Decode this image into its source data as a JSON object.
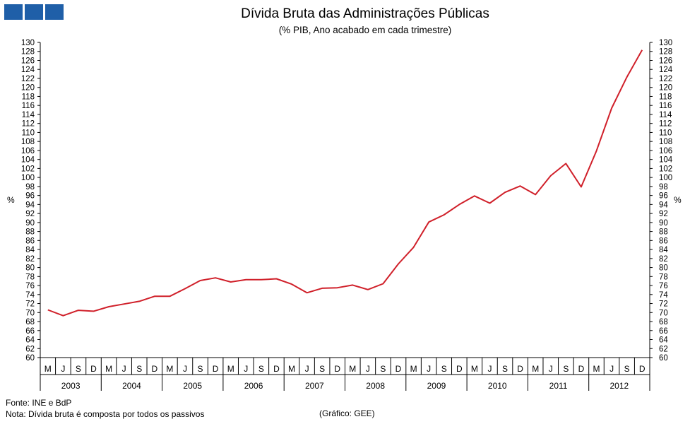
{
  "header": {
    "title": "Dívida Bruta das Administrações Públicas",
    "subtitle": "(% PIB, Ano acabado em cada trimestre)"
  },
  "logo": {
    "colors": [
      "#1f5fa8",
      "#1f5fa8",
      "#1f5fa8"
    ]
  },
  "footer": {
    "source": "Fonte: INE e BdP",
    "note": "Nota: Dívida bruta é composta por todos os passivos",
    "credit": "(Gráfico: GEE)"
  },
  "chart_data": {
    "type": "line",
    "title": "Dívida Bruta das Administrações Públicas",
    "subtitle": "(% PIB, Ano acabado em cada trimestre)",
    "ylabel_left": "%",
    "ylabel_right": "%",
    "ylim": [
      60,
      130
    ],
    "ytick_step": 2,
    "grid": false,
    "legend": "none",
    "quarter_labels": [
      "M",
      "J",
      "S",
      "D"
    ],
    "years": [
      "2003",
      "2004",
      "2005",
      "2006",
      "2007",
      "2008",
      "2009",
      "2010",
      "2011",
      "2012"
    ],
    "series": [
      {
        "color": "#d0202a",
        "values": [
          70.6,
          69.3,
          70.5,
          70.3,
          71.3,
          71.9,
          72.5,
          73.6,
          73.6,
          75.3,
          77.1,
          77.7,
          76.8,
          77.3,
          77.3,
          77.5,
          76.3,
          74.4,
          75.4,
          75.5,
          76.1,
          75.1,
          76.4,
          80.8,
          84.5,
          90.1,
          91.7,
          94.0,
          95.9,
          94.3,
          96.7,
          98.1,
          96.2,
          100.4,
          103.1,
          97.9,
          105.9,
          115.4,
          122.3,
          128.3
        ]
      }
    ]
  }
}
